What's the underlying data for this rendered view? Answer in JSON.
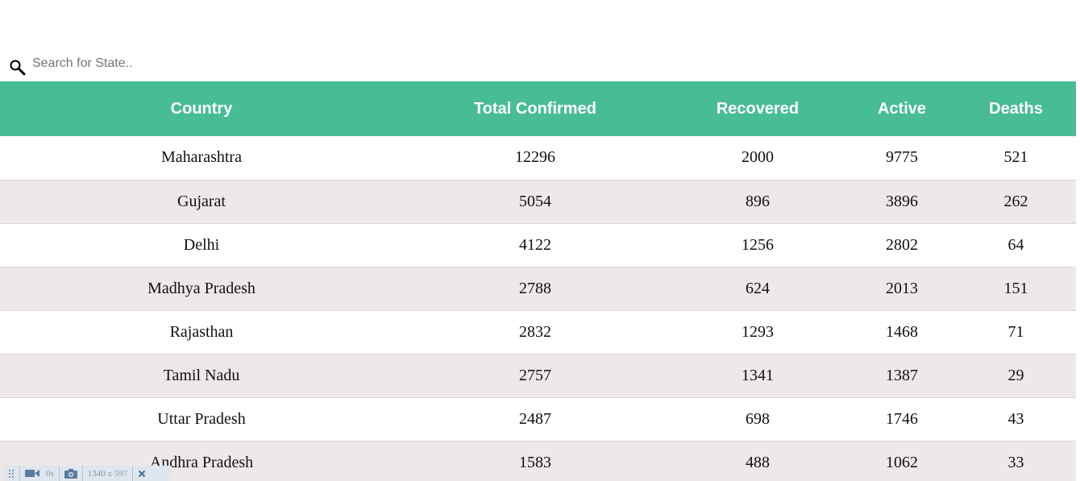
{
  "search": {
    "placeholder": "Search for State.."
  },
  "table": {
    "headers": [
      "Country",
      "Total Confirmed",
      "Recovered",
      "Active",
      "Deaths"
    ],
    "rows": [
      [
        "Maharashtra",
        "12296",
        "2000",
        "9775",
        "521"
      ],
      [
        "Gujarat",
        "5054",
        "896",
        "3896",
        "262"
      ],
      [
        "Delhi",
        "4122",
        "1256",
        "2802",
        "64"
      ],
      [
        "Madhya Pradesh",
        "2788",
        "624",
        "2013",
        "151"
      ],
      [
        "Rajasthan",
        "2832",
        "1293",
        "1468",
        "71"
      ],
      [
        "Tamil Nadu",
        "2757",
        "1341",
        "1387",
        "29"
      ],
      [
        "Uttar Pradesh",
        "2487",
        "698",
        "1746",
        "43"
      ],
      [
        "Andhra Pradesh",
        "1583",
        "488",
        "1062",
        "33"
      ]
    ]
  },
  "toolbar": {
    "timer": "0s",
    "dimensions": "1340 x 597"
  },
  "colors": {
    "header_bg": "#47bc97",
    "row_alt_bg": "#eee8e8"
  },
  "icons": {
    "search": "search-icon",
    "drag": "drag-handle-icon",
    "record": "video-camera-icon",
    "screenshot": "camera-icon",
    "close": "close-icon"
  }
}
